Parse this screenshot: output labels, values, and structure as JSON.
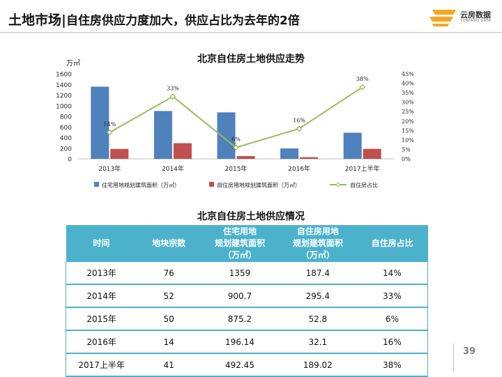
{
  "header": {
    "title": "土地市场",
    "separator": "|",
    "subtitle": "自住房供应力度加大，供应占比为去年的2倍"
  },
  "logo": {
    "name": "云房数据",
    "tagline": "YUNFANG DATA",
    "color": "#f5a623"
  },
  "chart_data": {
    "type": "bar",
    "title": "北京自住房土地供应走势",
    "ylabel": "万㎡",
    "categories": [
      "2013年",
      "2014年",
      "2015年",
      "2016年",
      "2017上半年"
    ],
    "ylim": [
      0,
      1600
    ],
    "yticks": [
      "0",
      "200",
      "400",
      "600",
      "800",
      "1000",
      "1200",
      "1400",
      "1600"
    ],
    "y2lim": [
      0,
      45
    ],
    "y2ticks": [
      "0%",
      "5%",
      "10%",
      "15%",
      "20%",
      "25%",
      "30%",
      "35%",
      "40%",
      "45%"
    ],
    "series": [
      {
        "name": "住宅用地规划建筑面积（万㎡）",
        "kind": "bar",
        "axis": "left",
        "color": "#4f81bd",
        "values": [
          1359,
          900.7,
          875.2,
          196.14,
          492.45
        ]
      },
      {
        "name": "自住房用地规划建筑面积（万㎡）",
        "kind": "bar",
        "axis": "left",
        "color": "#c0504d",
        "values": [
          187.4,
          295.4,
          52.8,
          32.1,
          189.02
        ]
      },
      {
        "name": "自住房占比",
        "kind": "line",
        "axis": "right",
        "color": "#9bbb59",
        "values": [
          14,
          33,
          6,
          16,
          38
        ],
        "labels": [
          "14%",
          "33%",
          "6%",
          "16%",
          "38%"
        ]
      }
    ],
    "legend": "bottom"
  },
  "table": {
    "title": "北京自住房土地供应情况",
    "headers": [
      [
        "时间"
      ],
      [
        "地块宗数"
      ],
      [
        "住宅用地",
        "规划建筑面积",
        "（万㎡）"
      ],
      [
        "自住房用地",
        "规划建筑面积",
        "（万㎡）"
      ],
      [
        "自住房占比"
      ]
    ],
    "rows": [
      [
        "2013年",
        "76",
        "1359",
        "187.4",
        "14%"
      ],
      [
        "2014年",
        "52",
        "900.7",
        "295.4",
        "33%"
      ],
      [
        "2015年",
        "50",
        "875.2",
        "52.8",
        "6%"
      ],
      [
        "2016年",
        "14",
        "196.14",
        "32.1",
        "16%"
      ],
      [
        "2017上半年",
        "41",
        "492.45",
        "189.02",
        "38%"
      ]
    ]
  },
  "page_number": "39"
}
